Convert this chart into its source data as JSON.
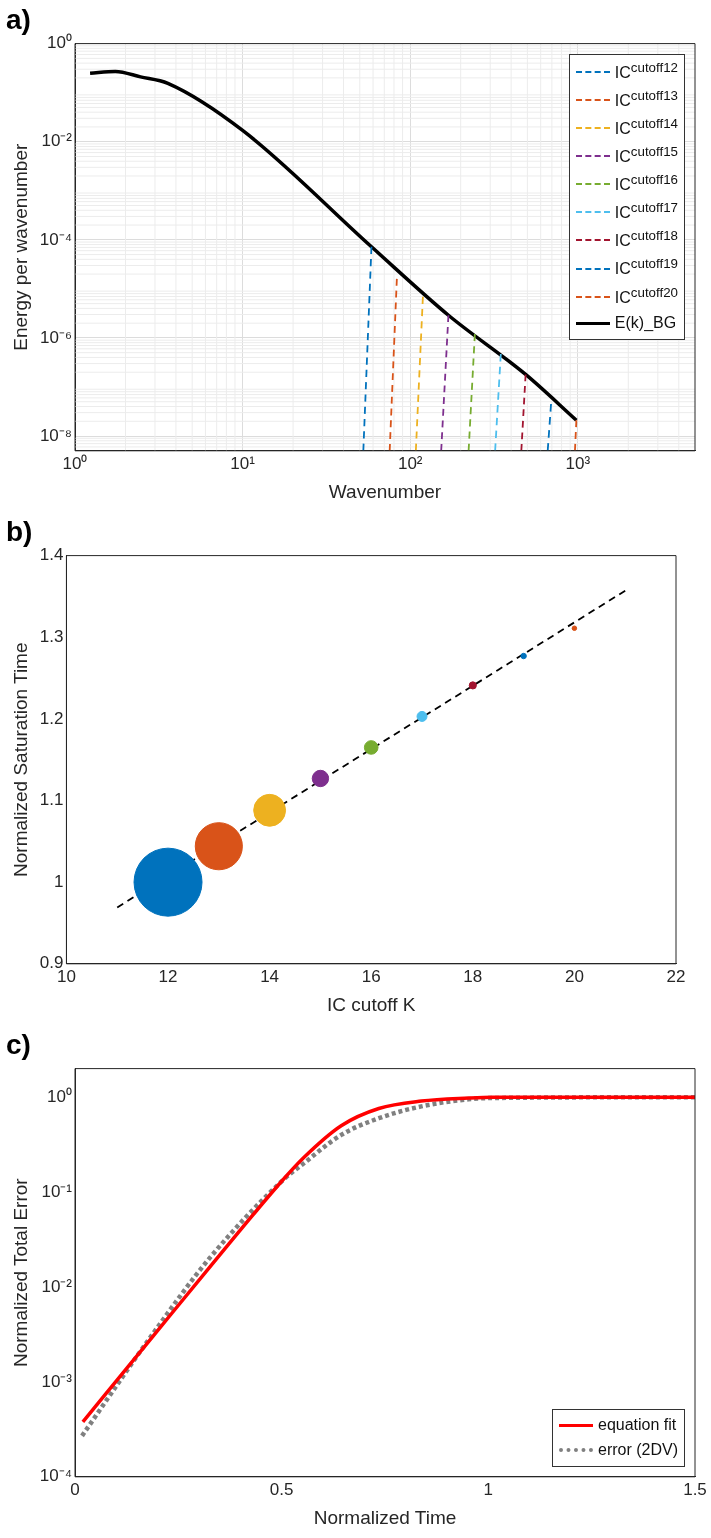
{
  "chart_data": [
    {
      "type": "line",
      "title": "a)",
      "xlabel": "Wavenumber",
      "ylabel": "Energy per wavenumber",
      "log": "xy",
      "grid": true,
      "legend": "top right",
      "marker": "none",
      "xlim": [
        1,
        5000
      ],
      "xticks": [
        {
          "value": 1,
          "label": "10⁰"
        },
        {
          "value": 10,
          "label": "10¹"
        },
        {
          "value": 100,
          "label": "10²"
        },
        {
          "value": 1000,
          "label": "10³"
        }
      ],
      "ylim": [
        5e-09,
        1
      ],
      "yticks": [
        {
          "value": 1e-08,
          "label": "10⁻⁸"
        },
        {
          "value": 1e-06,
          "label": "10⁻⁶"
        },
        {
          "value": 0.0001,
          "label": "10⁻⁴"
        },
        {
          "value": 0.01,
          "label": "10⁻²"
        },
        {
          "value": 1,
          "label": "10⁰"
        }
      ],
      "series": [
        {
          "name": "IC$^{cutoff12}$",
          "color": "#0072bd",
          "line_style": "dashed",
          "x": [
            52.5,
            58.7
          ],
          "values": [
            5e-09,
            7.2e-05
          ]
        },
        {
          "name": "IC$^{cutoff13}$",
          "color": "#d95319",
          "line_style": "dashed",
          "x": [
            75.4,
            83.2
          ],
          "values": [
            5e-09,
            1.6e-05
          ]
        },
        {
          "name": "IC$^{cutoff14}$",
          "color": "#edb120",
          "line_style": "dashed",
          "x": [
            108,
            119
          ],
          "values": [
            5e-09,
            6.9e-06
          ]
        },
        {
          "name": "IC$^{cutoff15}$",
          "color": "#7e2f8e",
          "line_style": "dashed",
          "x": [
            153,
            169
          ],
          "values": [
            5e-09,
            2.9e-06
          ]
        },
        {
          "name": "IC$^{cutoff16}$",
          "color": "#77ac30",
          "line_style": "dashed",
          "x": [
            223,
            243
          ],
          "values": [
            5e-09,
            1.2e-06
          ]
        },
        {
          "name": "IC$^{cutoff17}$",
          "color": "#4dbeee",
          "line_style": "dashed",
          "x": [
            321,
            347
          ],
          "values": [
            5e-09,
            4.7e-07
          ]
        },
        {
          "name": "IC$^{cutoff18}$",
          "color": "#a2142f",
          "line_style": "dashed",
          "x": [
            460,
            488
          ],
          "values": [
            5e-09,
            1.8e-07
          ]
        },
        {
          "name": "IC$^{cutoff19}$",
          "color": "#0072bd",
          "line_style": "dashed",
          "x": [
            661,
            692
          ],
          "values": [
            5e-09,
            4.5e-08
          ]
        },
        {
          "name": "IC$^{cutoff20}$",
          "color": "#d95319",
          "line_style": "dashed",
          "x": [
            961,
            980
          ],
          "values": [
            5e-09,
            2.1e-08
          ]
        },
        {
          "name": "E(k)_BG",
          "color": "#000000",
          "line_style": "solid",
          "x": [
            1.23,
            1.74,
            2.46,
            3.58,
            10,
            58.7,
            169,
            488,
            980
          ],
          "values": [
            0.25,
            0.27,
            0.21,
            0.155,
            0.017,
            7.2e-05,
            2.9e-06,
            1.8e-07,
            2.1e-08
          ]
        }
      ]
    },
    {
      "type": "bubble",
      "title": "b)",
      "xlabel": "IC cutoff K",
      "ylabel": "Normalized Saturation Time",
      "grid": false,
      "legend": false,
      "xlim": [
        10,
        22
      ],
      "xticks": [
        10,
        12,
        14,
        16,
        18,
        20,
        22
      ],
      "ylim": [
        0.9,
        1.4
      ],
      "yticks": [
        0.9,
        1,
        1.1,
        1.2,
        1.3,
        1.4
      ],
      "series": [
        {
          "x": [
            12,
            13,
            14,
            15,
            16,
            17,
            18,
            19,
            20
          ],
          "values": [
            1.0,
            1.044,
            1.088,
            1.127,
            1.165,
            1.203,
            1.241,
            1.277,
            1.311
          ],
          "sizes": [
            1,
            0.48,
            0.22,
            0.058,
            0.04,
            0.0215,
            0.011,
            0.0064,
            0.0044
          ],
          "colors": [
            "#0072bd",
            "#d95319",
            "#edb120",
            "#7e2f8e",
            "#77ac30",
            "#4dbeee",
            "#a2142f",
            "#0072bd",
            "#d95319"
          ]
        },
        {
          "type": "line",
          "color": "#000000",
          "line_style": "dashed",
          "marker": "none",
          "x": [
            11,
            21
          ],
          "values": [
            0.969,
            1.357
          ]
        }
      ]
    },
    {
      "type": "line",
      "title": "c)",
      "xlabel": "Normalized Time",
      "ylabel": "Normalized Total Error",
      "log": "y",
      "grid": false,
      "legend": "bottom right",
      "marker": "none",
      "xlim": [
        0,
        1.5
      ],
      "xticks": [
        0,
        0.5,
        1,
        1.5
      ],
      "ylim": [
        0.0001,
        2
      ],
      "yticks": [
        {
          "value": 0.0001,
          "label": "10⁻⁴"
        },
        {
          "value": 0.001,
          "label": "10⁻³"
        },
        {
          "value": 0.01,
          "label": "10⁻²"
        },
        {
          "value": 0.1,
          "label": "10⁻¹"
        },
        {
          "value": 1,
          "label": "10⁰"
        }
      ],
      "series": [
        {
          "name": "equation fit",
          "color": "#ff0000",
          "line_style": "solid",
          "x": [
            0.019,
            0.188,
            0.325,
            0.5,
            0.553,
            0.644,
            0.735,
            0.838,
            0.952,
            1.01,
            1.5
          ],
          "values": [
            0.00038,
            0.003,
            0.016,
            0.13,
            0.23,
            0.5,
            0.76,
            0.91,
            0.98,
            1.0,
            1.0
          ]
        },
        {
          "name": "error (2DV)",
          "color": "#808080",
          "line_style": "dotted",
          "x": [
            0.017,
            0.188,
            0.325,
            0.5,
            0.553,
            0.644,
            0.735,
            0.838,
            0.952,
            1.01,
            1.5
          ],
          "values": [
            0.00027,
            0.0032,
            0.02,
            0.13,
            0.2,
            0.4,
            0.6,
            0.8,
            0.95,
            0.98,
            1.0
          ]
        }
      ]
    }
  ]
}
